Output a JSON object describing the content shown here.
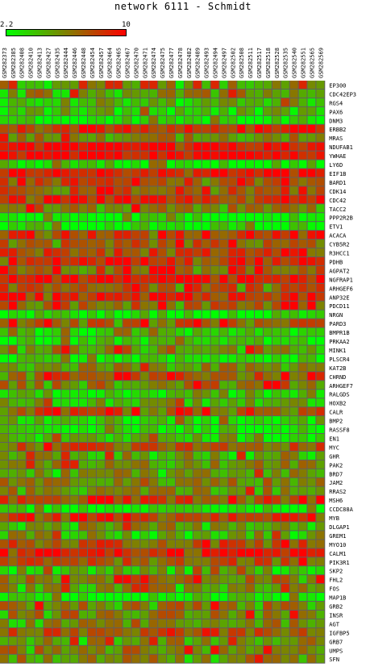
{
  "chart_data": {
    "type": "heatmap",
    "title": "network 6111 - Schmidt",
    "scale": {
      "min": "2.2",
      "max": "10",
      "min_color": "#00ff00",
      "max_color": "#ff0000"
    },
    "columns": [
      "GSM282373",
      "GSM282385",
      "GSM282408",
      "GSM282410",
      "GSM282413",
      "GSM282427",
      "GSM282435",
      "GSM282444",
      "GSM282446",
      "GSM282448",
      "GSM282454",
      "GSM282457",
      "GSM282464",
      "GSM282465",
      "GSM282467",
      "GSM282470",
      "GSM282471",
      "GSM282474",
      "GSM282475",
      "GSM282477",
      "GSM282478",
      "GSM282482",
      "GSM282489",
      "GSM282493",
      "GSM282494",
      "GSM282497",
      "GSM282502",
      "GSM282508",
      "GSM282511",
      "GSM282517",
      "GSM282518",
      "GSM282528",
      "GSM282535",
      "GSM282540",
      "GSM282551",
      "GSM282565",
      "GSM282569"
    ],
    "rows": [
      "EP300",
      "CDC42EP3",
      "RGS4",
      "PAX6",
      "DNM3",
      "ERBB2",
      "MRAS",
      "NDUFAB1",
      "YWHAE",
      "LY6D",
      "EIF1B",
      "BARD1",
      "CDK14",
      "CDC42",
      "TACC2",
      "PPP2R2B",
      "ETV1",
      "ACACA",
      "CYB5R2",
      "R3HCC1",
      "PDHB",
      "AGPAT2",
      "NGFRAP1",
      "ARHGEF6",
      "ANP32E",
      "PDCD11",
      "NRGN",
      "PARD3",
      "BMPR1B",
      "PRKAA2",
      "MINK1",
      "PLSCR4",
      "KAT2B",
      "CHRND",
      "ARHGEF7",
      "RALGDS",
      "HOXB2",
      "CALR",
      "BMP2",
      "RASSF8",
      "EN1",
      "MYC",
      "GHR",
      "PAK2",
      "BRD7",
      "JAM2",
      "RRAS2",
      "MSH6",
      "CCDC88A",
      "MYB",
      "DLGAP1",
      "GREM1",
      "MYO10",
      "CALM1",
      "PIK3R1",
      "SKP2",
      "FHL2",
      "FOS",
      "MAP1B",
      "GRB2",
      "INSR",
      "AGT",
      "IGFBP5",
      "GRB7",
      "UMPS",
      "SFN"
    ],
    "row_levels": [
      0.4,
      0.44,
      0.3,
      0.25,
      0.1,
      0.88,
      0.48,
      0.97,
      0.98,
      0.14,
      0.92,
      0.7,
      0.72,
      0.86,
      0.57,
      0.05,
      0.08,
      0.78,
      0.62,
      0.7,
      0.82,
      0.66,
      0.9,
      0.65,
      0.84,
      0.6,
      0.12,
      0.58,
      0.16,
      0.15,
      0.5,
      0.08,
      0.42,
      0.64,
      0.55,
      0.3,
      0.32,
      0.72,
      0.2,
      0.08,
      0.28,
      0.64,
      0.4,
      0.42,
      0.38,
      0.5,
      0.44,
      0.74,
      0.06,
      0.86,
      0.42,
      0.36,
      0.66,
      0.9,
      0.62,
      0.28,
      0.52,
      0.4,
      0.1,
      0.52,
      0.5,
      0.48,
      0.7,
      0.42,
      0.5,
      0.46
    ]
  }
}
